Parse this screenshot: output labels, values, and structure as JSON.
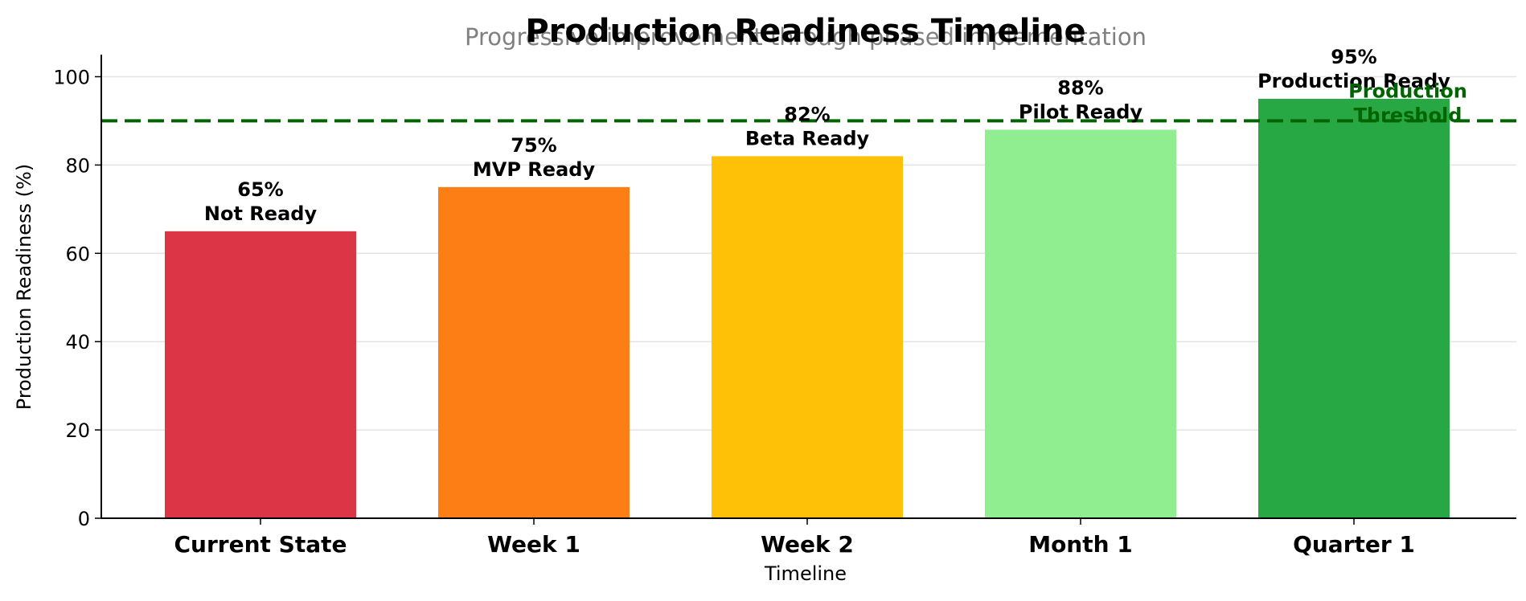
{
  "chart_data": {
    "type": "bar",
    "title": "Production Readiness Timeline",
    "subtitle": "Progressive improvement through phased implementation",
    "xlabel": "Timeline",
    "ylabel": "Production Readiness (%)",
    "ylim": [
      0,
      105
    ],
    "yticks": [
      0,
      20,
      40,
      60,
      80,
      100
    ],
    "grid": "horizontal",
    "categories": [
      "Current State",
      "Week 1",
      "Week 2",
      "Month 1",
      "Quarter 1"
    ],
    "values": [
      65,
      75,
      82,
      88,
      95
    ],
    "value_labels": [
      "65%",
      "75%",
      "82%",
      "88%",
      "95%"
    ],
    "status_labels": [
      "Not Ready",
      "MVP Ready",
      "Beta Ready",
      "Pilot Ready",
      "Production Ready"
    ],
    "colors": [
      "#dc3545",
      "#fd7e14",
      "#ffc107",
      "#90ee90",
      "#28a745"
    ],
    "threshold": {
      "value": 90,
      "label_lines": [
        "Production",
        "Threshold"
      ],
      "color": "#006400"
    }
  }
}
